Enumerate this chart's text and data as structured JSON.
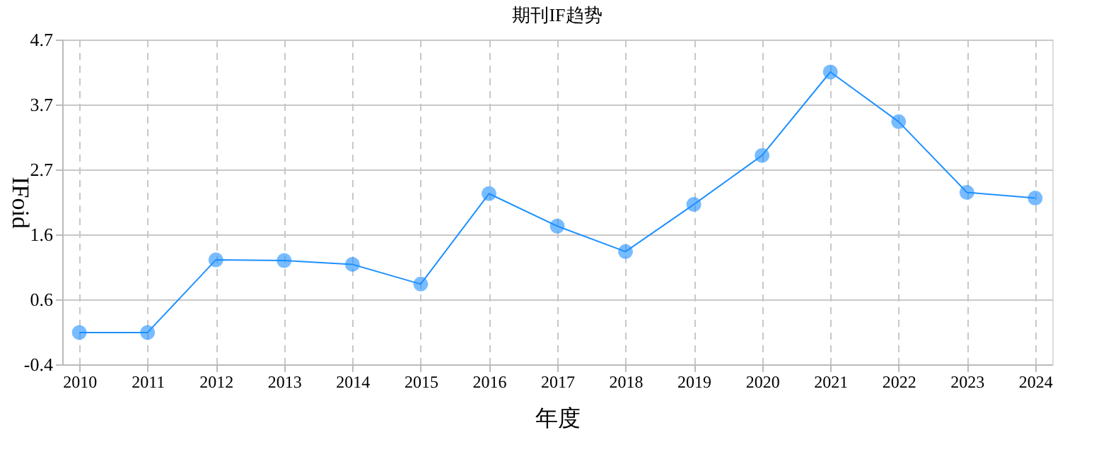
{
  "chart_data": {
    "type": "line",
    "title": "期刊IF趋势",
    "xlabel": "年度",
    "ylabel": "IFoid",
    "categories": [
      "2010",
      "2011",
      "2012",
      "2013",
      "2014",
      "2015",
      "2016",
      "2017",
      "2018",
      "2019",
      "2020",
      "2021",
      "2022",
      "2023",
      "2024"
    ],
    "series": [
      {
        "color": "#1e90ff",
        "values": [
          0.1,
          0.1,
          1.24,
          1.23,
          1.17,
          0.86,
          2.28,
          1.77,
          1.37,
          2.11,
          2.88,
          4.19,
          3.41,
          2.3,
          2.21
        ]
      }
    ],
    "ylim": [
      -0.4,
      4.7
    ],
    "yticks": [
      -0.4,
      {
        "value": 0.62,
        "label": "0.6"
      },
      {
        "value": 1.64,
        "label": "1.6"
      },
      {
        "value": 2.66,
        "label": "2.7"
      },
      {
        "value": 3.68,
        "label": "3.7"
      },
      4.7
    ],
    "grid": true,
    "marker": "circle",
    "line_style": "solid"
  }
}
